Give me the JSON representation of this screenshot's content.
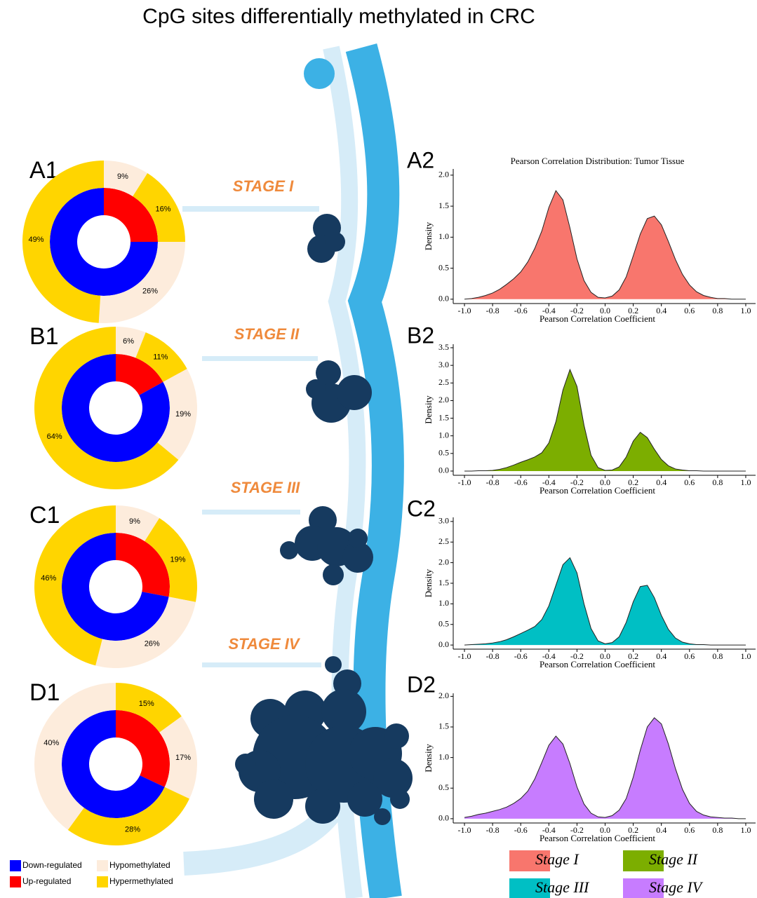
{
  "title": "CpG sites differentially methylated in CRC",
  "stages": [
    "STAGE I",
    "STAGE II",
    "STAGE III",
    "STAGE IV"
  ],
  "legend": [
    {
      "name": "Down-regulated",
      "color": "#0000ff"
    },
    {
      "name": "Up-regulated",
      "color": "#ff0000"
    },
    {
      "name": "Hypomethylated",
      "color": "#fdecdc"
    },
    {
      "name": "Hypermethylated",
      "color": "#ffd500"
    }
  ],
  "chart_data": [
    {
      "type": "donut",
      "label": "A1",
      "rings": [
        {
          "values": [
            25,
            75
          ],
          "colors": [
            "#ff0000",
            "#0000ff"
          ]
        },
        {
          "values": [
            9,
            16,
            26,
            49
          ],
          "value_labels": [
            "9%",
            "16%",
            "26%",
            "49%"
          ],
          "colors": [
            "#fdecdc",
            "#ffd500",
            "#fdecdc",
            "#ffd500"
          ]
        }
      ]
    },
    {
      "type": "donut",
      "label": "B1",
      "rings": [
        {
          "values": [
            17,
            83
          ],
          "colors": [
            "#ff0000",
            "#0000ff"
          ]
        },
        {
          "values": [
            6,
            11,
            19,
            64
          ],
          "value_labels": [
            "6%",
            "11%",
            "19%",
            "64%"
          ],
          "colors": [
            "#fdecdc",
            "#ffd500",
            "#fdecdc",
            "#ffd500"
          ]
        }
      ]
    },
    {
      "type": "donut",
      "label": "C1",
      "rings": [
        {
          "values": [
            28,
            72
          ],
          "colors": [
            "#ff0000",
            "#0000ff"
          ]
        },
        {
          "values": [
            9,
            19,
            26,
            46
          ],
          "value_labels": [
            "9%",
            "19%",
            "26%",
            "46%"
          ],
          "colors": [
            "#fdecdc",
            "#ffd500",
            "#fdecdc",
            "#ffd500"
          ]
        }
      ]
    },
    {
      "type": "donut",
      "label": "D1",
      "rings": [
        {
          "values": [
            32,
            68
          ],
          "colors": [
            "#ff0000",
            "#0000ff"
          ]
        },
        {
          "values": [
            15,
            17,
            28,
            40
          ],
          "value_labels": [
            "15%",
            "17%",
            "28%",
            "40%"
          ],
          "colors": [
            "#ffd500",
            "#fdecdc",
            "#ffd500",
            "#fdecdc"
          ]
        }
      ]
    },
    {
      "type": "area",
      "label": "A2",
      "title": "Pearson Correlation Distribution: Tumor Tissue",
      "x_label": "Pearson Correlation Coefficient",
      "y_label": "Density",
      "x": [
        -1,
        -0.95,
        -0.9,
        -0.85,
        -0.8,
        -0.75,
        -0.7,
        -0.65,
        -0.6,
        -0.55,
        -0.5,
        -0.45,
        -0.4,
        -0.35,
        -0.3,
        -0.25,
        -0.2,
        -0.15,
        -0.1,
        -0.05,
        0,
        0.05,
        0.1,
        0.15,
        0.2,
        0.25,
        0.3,
        0.35,
        0.4,
        0.45,
        0.5,
        0.55,
        0.6,
        0.65,
        0.7,
        0.75,
        0.8,
        0.85,
        0.9,
        0.95,
        1
      ],
      "series": [
        {
          "name": "Stage I",
          "color": "#f8766d",
          "values": [
            0,
            0.01,
            0.03,
            0.06,
            0.1,
            0.16,
            0.24,
            0.33,
            0.44,
            0.6,
            0.82,
            1.1,
            1.48,
            1.75,
            1.6,
            1.15,
            0.65,
            0.3,
            0.11,
            0.03,
            0.02,
            0.05,
            0.15,
            0.36,
            0.7,
            1.05,
            1.3,
            1.34,
            1.2,
            0.93,
            0.64,
            0.4,
            0.23,
            0.12,
            0.06,
            0.03,
            0.01,
            0.01,
            0,
            0,
            0
          ]
        }
      ],
      "xlim": [
        -1.08,
        1.07
      ],
      "xticks": [
        {
          "value": -1,
          "label": "-1.0"
        },
        -0.8,
        -0.6,
        -0.4,
        -0.2,
        {
          "value": 0,
          "label": "0.0"
        },
        0.2,
        0.4,
        0.6,
        0.8,
        {
          "value": 1,
          "label": "1.0"
        }
      ],
      "ylim": [
        -0.07,
        2.1
      ],
      "yticks": [
        {
          "value": 0,
          "label": "0.0"
        },
        0.5,
        {
          "value": 1,
          "label": "1.0"
        },
        1.5,
        {
          "value": 2,
          "label": "2.0"
        }
      ]
    },
    {
      "type": "area",
      "label": "B2",
      "x_label": "Pearson Correlation Coefficient",
      "y_label": "Density",
      "x": [
        -1,
        -0.95,
        -0.9,
        -0.85,
        -0.8,
        -0.75,
        -0.7,
        -0.65,
        -0.6,
        -0.55,
        -0.5,
        -0.45,
        -0.4,
        -0.35,
        -0.3,
        -0.25,
        -0.2,
        -0.15,
        -0.1,
        -0.05,
        0,
        0.05,
        0.1,
        0.15,
        0.2,
        0.25,
        0.3,
        0.35,
        0.4,
        0.45,
        0.5,
        0.55,
        0.6,
        0.65,
        0.7,
        0.75,
        0.8,
        0.85,
        0.9,
        0.95,
        1
      ],
      "series": [
        {
          "name": "Stage II",
          "color": "#7cae00",
          "values": [
            0,
            0,
            0.01,
            0.01,
            0.02,
            0.05,
            0.1,
            0.17,
            0.25,
            0.32,
            0.4,
            0.52,
            0.8,
            1.4,
            2.3,
            2.88,
            2.4,
            1.3,
            0.45,
            0.1,
            0.02,
            0.03,
            0.12,
            0.4,
            0.85,
            1.1,
            0.95,
            0.62,
            0.33,
            0.15,
            0.06,
            0.03,
            0.01,
            0.01,
            0,
            0,
            0,
            0,
            0,
            0,
            0
          ]
        }
      ],
      "xlim": [
        -1.08,
        1.07
      ],
      "xticks": [
        {
          "value": -1,
          "label": "-1.0"
        },
        -0.8,
        -0.6,
        -0.4,
        -0.2,
        {
          "value": 0,
          "label": "0.0"
        },
        0.2,
        0.4,
        0.6,
        0.8,
        {
          "value": 1,
          "label": "1.0"
        }
      ],
      "ylim": [
        -0.12,
        3.6
      ],
      "yticks": [
        {
          "value": 0,
          "label": "0.0"
        },
        0.5,
        {
          "value": 1,
          "label": "1.0"
        },
        1.5,
        {
          "value": 2,
          "label": "2.0"
        },
        2.5,
        {
          "value": 3,
          "label": "3.0"
        },
        3.5
      ]
    },
    {
      "type": "area",
      "label": "C2",
      "x_label": "Pearson Correlation Coefficient",
      "y_label": "Density",
      "x": [
        -1,
        -0.95,
        -0.9,
        -0.85,
        -0.8,
        -0.75,
        -0.7,
        -0.65,
        -0.6,
        -0.55,
        -0.5,
        -0.45,
        -0.4,
        -0.35,
        -0.3,
        -0.25,
        -0.2,
        -0.15,
        -0.1,
        -0.05,
        0,
        0.05,
        0.1,
        0.15,
        0.2,
        0.25,
        0.3,
        0.35,
        0.4,
        0.45,
        0.5,
        0.55,
        0.6,
        0.65,
        0.7,
        0.75,
        0.8,
        0.85,
        0.9,
        0.95,
        1
      ],
      "series": [
        {
          "name": "Stage III",
          "color": "#00bfc4",
          "values": [
            0,
            0.01,
            0.02,
            0.03,
            0.05,
            0.08,
            0.13,
            0.2,
            0.28,
            0.36,
            0.45,
            0.62,
            0.95,
            1.45,
            1.95,
            2.12,
            1.75,
            1.0,
            0.4,
            0.1,
            0.03,
            0.06,
            0.2,
            0.55,
            1.05,
            1.42,
            1.45,
            1.15,
            0.72,
            0.38,
            0.17,
            0.07,
            0.03,
            0.01,
            0.01,
            0,
            0,
            0,
            0,
            0,
            0
          ]
        }
      ],
      "xlim": [
        -1.08,
        1.07
      ],
      "xticks": [
        {
          "value": -1,
          "label": "-1.0"
        },
        -0.8,
        -0.6,
        -0.4,
        -0.2,
        {
          "value": 0,
          "label": "0.0"
        },
        0.2,
        0.4,
        0.6,
        0.8,
        {
          "value": 1,
          "label": "1.0"
        }
      ],
      "ylim": [
        -0.1,
        3.1
      ],
      "yticks": [
        {
          "value": 0,
          "label": "0.0"
        },
        0.5,
        {
          "value": 1,
          "label": "1.0"
        },
        1.5,
        {
          "value": 2,
          "label": "2.0"
        },
        2.5,
        {
          "value": 3,
          "label": "3.0"
        }
      ]
    },
    {
      "type": "area",
      "label": "D2",
      "x_label": "Pearson Correlation Coefficient",
      "y_label": "Density",
      "x": [
        -1,
        -0.95,
        -0.9,
        -0.85,
        -0.8,
        -0.75,
        -0.7,
        -0.65,
        -0.6,
        -0.55,
        -0.5,
        -0.45,
        -0.4,
        -0.35,
        -0.3,
        -0.25,
        -0.2,
        -0.15,
        -0.1,
        -0.05,
        0,
        0.05,
        0.1,
        0.15,
        0.2,
        0.25,
        0.3,
        0.35,
        0.4,
        0.45,
        0.5,
        0.55,
        0.6,
        0.65,
        0.7,
        0.75,
        0.8,
        0.85,
        0.9,
        0.95,
        1
      ],
      "series": [
        {
          "name": "Stage IV",
          "color": "#c77cff",
          "values": [
            0.02,
            0.04,
            0.07,
            0.09,
            0.12,
            0.15,
            0.19,
            0.25,
            0.33,
            0.45,
            0.65,
            0.92,
            1.2,
            1.35,
            1.22,
            0.9,
            0.52,
            0.24,
            0.09,
            0.03,
            0.02,
            0.05,
            0.14,
            0.33,
            0.68,
            1.12,
            1.5,
            1.65,
            1.55,
            1.22,
            0.82,
            0.48,
            0.25,
            0.12,
            0.06,
            0.03,
            0.02,
            0.01,
            0.01,
            0,
            0
          ]
        }
      ],
      "xlim": [
        -1.08,
        1.07
      ],
      "xticks": [
        {
          "value": -1,
          "label": "-1.0"
        },
        -0.8,
        -0.6,
        -0.4,
        -0.2,
        {
          "value": 0,
          "label": "0.0"
        },
        0.2,
        0.4,
        0.6,
        0.8,
        {
          "value": 1,
          "label": "1.0"
        }
      ],
      "ylim": [
        -0.07,
        2.05
      ],
      "yticks": [
        {
          "value": 0,
          "label": "0.0"
        },
        0.5,
        {
          "value": 1,
          "label": "1.0"
        },
        1.5,
        {
          "value": 2,
          "label": "2.0"
        }
      ]
    }
  ]
}
